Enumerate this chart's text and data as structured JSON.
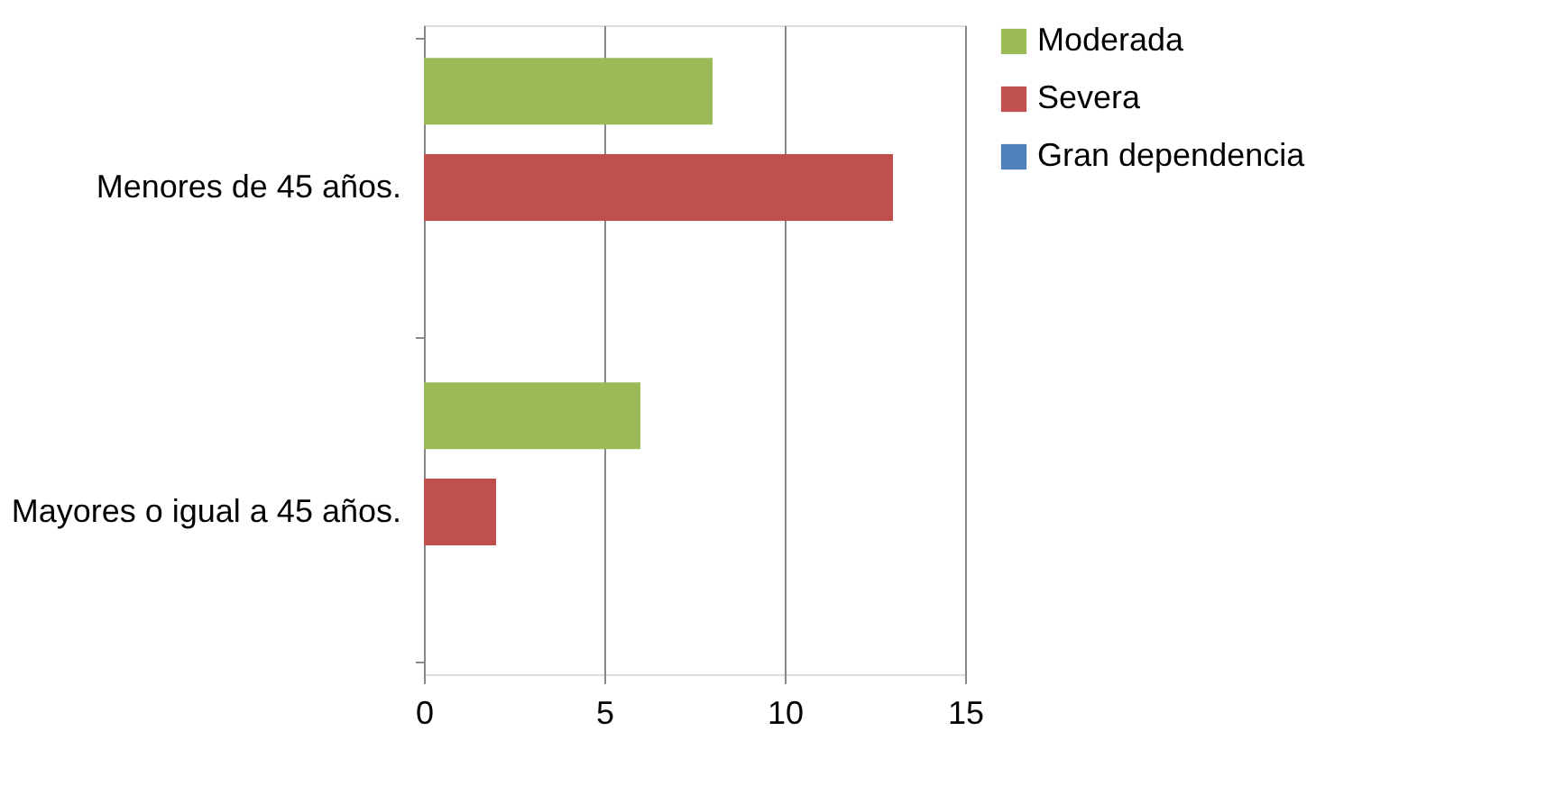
{
  "chart_data": {
    "type": "bar",
    "orientation": "horizontal",
    "categories": [
      "Menores de 45 años.",
      "Mayores o igual a 45 años."
    ],
    "series": [
      {
        "name": "Moderada",
        "color": "#9bbb59",
        "values": [
          8,
          6
        ]
      },
      {
        "name": "Severa",
        "color": "#c0504d",
        "values": [
          13,
          2
        ]
      },
      {
        "name": "Gran dependencia",
        "color": "#4f81bd",
        "values": [
          0,
          0
        ]
      }
    ],
    "xlim": [
      0,
      15
    ],
    "xticks": [
      0,
      5,
      10,
      15
    ],
    "grid": "x",
    "legend": "right"
  }
}
